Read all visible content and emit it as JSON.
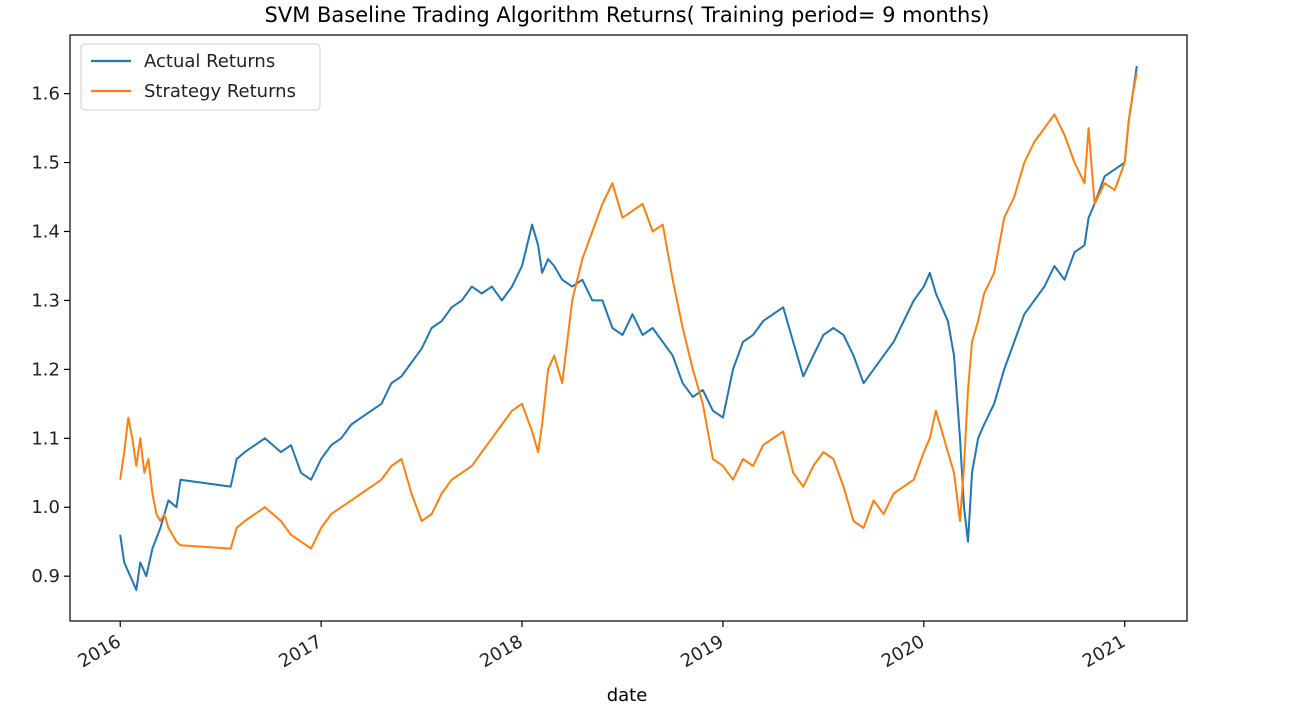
{
  "chart_data": {
    "type": "line",
    "title": "SVM Baseline Trading Algorithm Returns( Training period= 9 months)",
    "xlabel": "date",
    "ylabel": "",
    "x_ticks": [
      "2016",
      "2017",
      "2018",
      "2019",
      "2020",
      "2021"
    ],
    "y_ticks": [
      "0.9",
      "1.0",
      "1.1",
      "1.2",
      "1.3",
      "1.4",
      "1.5",
      "1.6"
    ],
    "xlim": [
      2015.75,
      2021.31
    ],
    "ylim": [
      0.835,
      1.685
    ],
    "grid": false,
    "legend_position": "upper left",
    "series": [
      {
        "name": "Actual Returns",
        "color": "#1f77b4",
        "x": [
          2016.0,
          2016.02,
          2016.05,
          2016.08,
          2016.1,
          2016.13,
          2016.16,
          2016.2,
          2016.24,
          2016.28,
          2016.3,
          2016.55,
          2016.58,
          2016.62,
          2016.67,
          2016.72,
          2016.8,
          2016.85,
          2016.9,
          2016.95,
          2017.0,
          2017.05,
          2017.1,
          2017.15,
          2017.2,
          2017.25,
          2017.3,
          2017.35,
          2017.4,
          2017.45,
          2017.5,
          2017.55,
          2017.6,
          2017.65,
          2017.7,
          2017.75,
          2017.8,
          2017.85,
          2017.9,
          2017.95,
          2018.0,
          2018.05,
          2018.08,
          2018.1,
          2018.13,
          2018.16,
          2018.2,
          2018.25,
          2018.3,
          2018.35,
          2018.4,
          2018.45,
          2018.5,
          2018.55,
          2018.6,
          2018.65,
          2018.7,
          2018.75,
          2018.8,
          2018.85,
          2018.9,
          2018.95,
          2019.0,
          2019.05,
          2019.1,
          2019.15,
          2019.2,
          2019.25,
          2019.3,
          2019.35,
          2019.4,
          2019.45,
          2019.5,
          2019.55,
          2019.6,
          2019.65,
          2019.7,
          2019.75,
          2019.8,
          2019.85,
          2019.9,
          2019.95,
          2020.0,
          2020.03,
          2020.06,
          2020.09,
          2020.12,
          2020.15,
          2020.18,
          2020.2,
          2020.22,
          2020.24,
          2020.27,
          2020.3,
          2020.35,
          2020.4,
          2020.45,
          2020.5,
          2020.55,
          2020.6,
          2020.65,
          2020.7,
          2020.75,
          2020.8,
          2020.82,
          2020.85,
          2020.9,
          2020.95,
          2021.0,
          2021.02,
          2021.04,
          2021.06
        ],
        "y": [
          0.96,
          0.92,
          0.9,
          0.88,
          0.92,
          0.9,
          0.94,
          0.97,
          1.01,
          1.0,
          1.04,
          1.03,
          1.07,
          1.08,
          1.09,
          1.1,
          1.08,
          1.09,
          1.05,
          1.04,
          1.07,
          1.09,
          1.1,
          1.12,
          1.13,
          1.14,
          1.15,
          1.18,
          1.19,
          1.21,
          1.23,
          1.26,
          1.27,
          1.29,
          1.3,
          1.32,
          1.31,
          1.32,
          1.3,
          1.32,
          1.35,
          1.41,
          1.38,
          1.34,
          1.36,
          1.35,
          1.33,
          1.32,
          1.33,
          1.3,
          1.3,
          1.26,
          1.25,
          1.28,
          1.25,
          1.26,
          1.24,
          1.22,
          1.18,
          1.16,
          1.17,
          1.14,
          1.13,
          1.2,
          1.24,
          1.25,
          1.27,
          1.28,
          1.29,
          1.24,
          1.19,
          1.22,
          1.25,
          1.26,
          1.25,
          1.22,
          1.18,
          1.2,
          1.22,
          1.24,
          1.27,
          1.3,
          1.32,
          1.34,
          1.31,
          1.29,
          1.27,
          1.22,
          1.1,
          1.0,
          0.95,
          1.05,
          1.1,
          1.12,
          1.15,
          1.2,
          1.24,
          1.28,
          1.3,
          1.32,
          1.35,
          1.33,
          1.37,
          1.38,
          1.42,
          1.44,
          1.48,
          1.49,
          1.5,
          1.56,
          1.6,
          1.64
        ]
      },
      {
        "name": "Strategy Returns",
        "color": "#ff7f0e",
        "x": [
          2016.0,
          2016.02,
          2016.04,
          2016.06,
          2016.08,
          2016.1,
          2016.12,
          2016.14,
          2016.16,
          2016.18,
          2016.2,
          2016.22,
          2016.24,
          2016.26,
          2016.28,
          2016.3,
          2016.55,
          2016.58,
          2016.62,
          2016.67,
          2016.72,
          2016.8,
          2016.85,
          2016.9,
          2016.95,
          2017.0,
          2017.05,
          2017.1,
          2017.15,
          2017.2,
          2017.25,
          2017.3,
          2017.35,
          2017.4,
          2017.45,
          2017.5,
          2017.55,
          2017.6,
          2017.65,
          2017.7,
          2017.75,
          2017.8,
          2017.85,
          2017.9,
          2017.95,
          2018.0,
          2018.05,
          2018.08,
          2018.1,
          2018.13,
          2018.16,
          2018.2,
          2018.25,
          2018.3,
          2018.35,
          2018.4,
          2018.45,
          2018.5,
          2018.55,
          2018.6,
          2018.65,
          2018.7,
          2018.75,
          2018.8,
          2018.85,
          2018.9,
          2018.95,
          2019.0,
          2019.05,
          2019.1,
          2019.15,
          2019.2,
          2019.25,
          2019.3,
          2019.35,
          2019.4,
          2019.45,
          2019.5,
          2019.55,
          2019.6,
          2019.65,
          2019.7,
          2019.75,
          2019.8,
          2019.85,
          2019.9,
          2019.95,
          2020.0,
          2020.03,
          2020.06,
          2020.09,
          2020.12,
          2020.15,
          2020.18,
          2020.2,
          2020.22,
          2020.24,
          2020.27,
          2020.3,
          2020.35,
          2020.4,
          2020.45,
          2020.5,
          2020.55,
          2020.6,
          2020.65,
          2020.7,
          2020.75,
          2020.8,
          2020.82,
          2020.85,
          2020.9,
          2020.95,
          2021.0,
          2021.02,
          2021.04,
          2021.06
        ],
        "y": [
          1.04,
          1.08,
          1.13,
          1.1,
          1.06,
          1.1,
          1.05,
          1.07,
          1.02,
          0.99,
          0.98,
          0.99,
          0.97,
          0.96,
          0.95,
          0.945,
          0.94,
          0.97,
          0.98,
          0.99,
          1.0,
          0.98,
          0.96,
          0.95,
          0.94,
          0.97,
          0.99,
          1.0,
          1.01,
          1.02,
          1.03,
          1.04,
          1.06,
          1.07,
          1.02,
          0.98,
          0.99,
          1.02,
          1.04,
          1.05,
          1.06,
          1.08,
          1.1,
          1.12,
          1.14,
          1.15,
          1.11,
          1.08,
          1.12,
          1.2,
          1.22,
          1.18,
          1.3,
          1.36,
          1.4,
          1.44,
          1.47,
          1.42,
          1.43,
          1.44,
          1.4,
          1.41,
          1.33,
          1.26,
          1.2,
          1.15,
          1.07,
          1.06,
          1.04,
          1.07,
          1.06,
          1.09,
          1.1,
          1.11,
          1.05,
          1.03,
          1.06,
          1.08,
          1.07,
          1.03,
          0.98,
          0.97,
          1.01,
          0.99,
          1.02,
          1.03,
          1.04,
          1.08,
          1.1,
          1.14,
          1.11,
          1.08,
          1.05,
          0.98,
          1.06,
          1.17,
          1.24,
          1.27,
          1.31,
          1.34,
          1.42,
          1.45,
          1.5,
          1.53,
          1.55,
          1.57,
          1.54,
          1.5,
          1.47,
          1.55,
          1.44,
          1.47,
          1.46,
          1.5,
          1.56,
          1.6,
          1.63
        ]
      }
    ]
  }
}
